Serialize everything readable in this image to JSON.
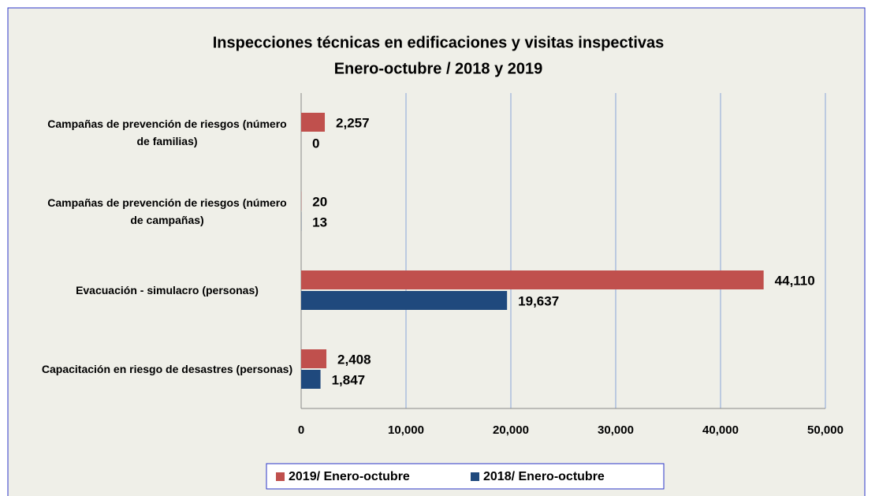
{
  "chart_data": {
    "type": "bar",
    "orientation": "horizontal",
    "title": "Inspecciones técnicas en edificaciones y visitas inspectivas",
    "subtitle": "Enero-octubre / 2018 y 2019",
    "categories": [
      "Campañas de prevención de riesgos (número de familias)",
      "Campañas de prevención de riesgos (número de campañas)",
      "Evacuación - simulacro (personas)",
      "Capacitación en riesgo de desastres (personas)"
    ],
    "series": [
      {
        "name": "2019/ Enero-octubre",
        "color": "#c0504d",
        "values": [
          2257,
          20,
          44110,
          2408
        ],
        "value_labels": [
          "2,257",
          "20",
          "44,110",
          "2,408"
        ]
      },
      {
        "name": "2018/ Enero-octubre",
        "color": "#1f497d",
        "values": [
          0,
          13,
          19637,
          1847
        ],
        "value_labels": [
          "0",
          "13",
          "19,637",
          "1,847"
        ]
      }
    ],
    "xlim": [
      0,
      50000
    ],
    "xticks": [
      0,
      {
        "value": 10000,
        "label": "10,000"
      },
      {
        "value": 20000,
        "label": "20,000"
      },
      {
        "value": 30000,
        "label": "30,000"
      },
      {
        "value": 40000,
        "label": "40,000"
      },
      {
        "value": 50000,
        "label": "50,000"
      }
    ],
    "grid": true,
    "legend": "bottom"
  }
}
